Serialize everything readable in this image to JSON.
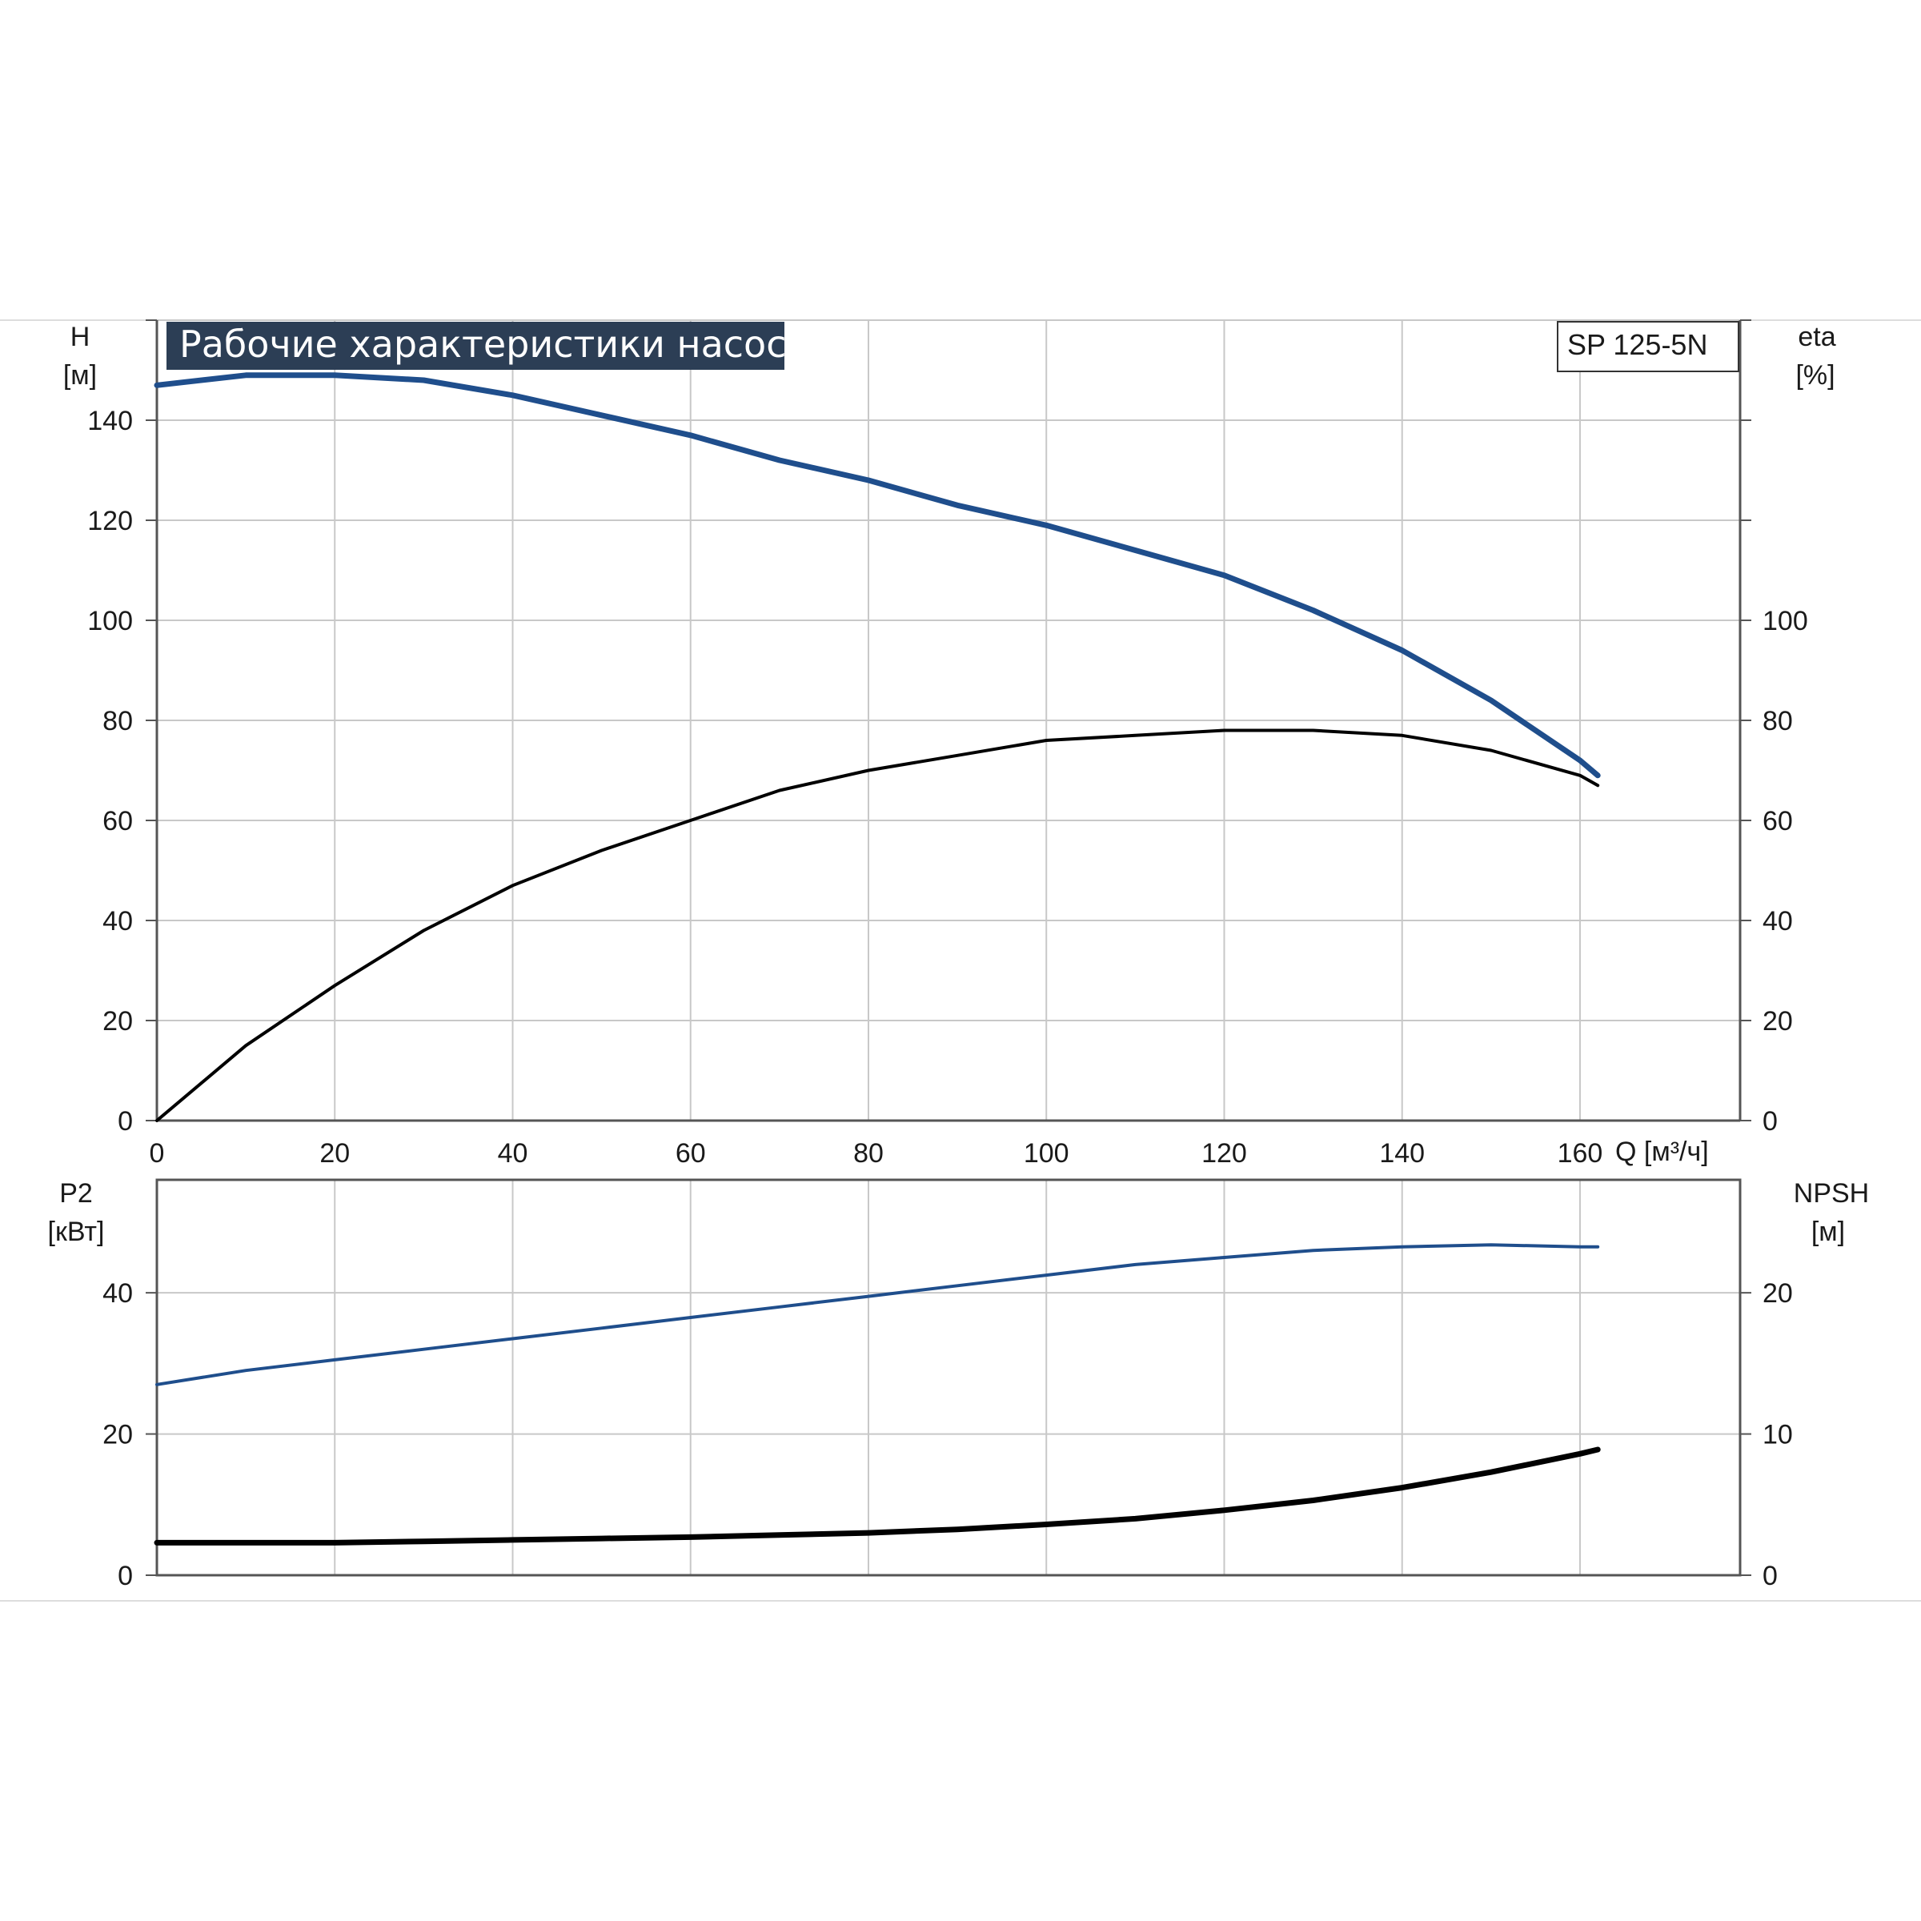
{
  "chart_data": [
    {
      "type": "line",
      "title": "Рабочие характеристики насоса",
      "model_label": "SP 125-5N",
      "ylabel_left": "H",
      "ylabel_left_unit": "[м]",
      "ylabel_right": "eta",
      "ylabel_right_unit": "[%]",
      "xlabel": "Q [м³/ч]",
      "xlim": [
        0,
        178
      ],
      "ylim_left": [
        0,
        160
      ],
      "ylim_right": [
        0,
        160
      ],
      "x_ticks": [
        "0",
        "20",
        "40",
        "60",
        "80",
        "100",
        "120",
        "140",
        "160"
      ],
      "y_ticks_left": [
        "0",
        "20",
        "40",
        "60",
        "80",
        "100",
        "120",
        "140"
      ],
      "y_ticks_right": [
        "0",
        "20",
        "40",
        "60",
        "80",
        "100"
      ],
      "grid": true,
      "series": [
        {
          "axis": "left",
          "color": "#1f4e8c",
          "x": [
            0,
            10,
            20,
            30,
            40,
            50,
            60,
            70,
            80,
            90,
            100,
            110,
            120,
            130,
            140,
            150,
            160,
            162
          ],
          "y": [
            147,
            149,
            149,
            148,
            145,
            141,
            137,
            132,
            128,
            123,
            119,
            114,
            109,
            102,
            94,
            84,
            72,
            69
          ]
        },
        {
          "axis": "right",
          "color": "#000000",
          "x": [
            0,
            10,
            20,
            30,
            40,
            50,
            60,
            70,
            80,
            90,
            100,
            110,
            120,
            130,
            140,
            150,
            160,
            162
          ],
          "y": [
            0,
            15,
            27,
            38,
            47,
            54,
            60,
            66,
            70,
            73,
            76,
            77,
            78,
            78,
            77,
            74,
            69,
            67
          ]
        }
      ]
    },
    {
      "type": "line",
      "ylabel_left": "P2",
      "ylabel_left_unit": "[кВт]",
      "ylabel_right": "NPSH",
      "ylabel_right_unit": "[м]",
      "xlim": [
        0,
        178
      ],
      "ylim_left": [
        0,
        56
      ],
      "ylim_right": [
        0,
        28
      ],
      "y_ticks_left": [
        "0",
        "20",
        "40"
      ],
      "y_ticks_right": [
        "0",
        "10",
        "20"
      ],
      "grid": true,
      "series": [
        {
          "axis": "left",
          "color": "#1f4e8c",
          "x": [
            0,
            10,
            20,
            30,
            40,
            50,
            60,
            70,
            80,
            90,
            100,
            110,
            120,
            130,
            140,
            150,
            160,
            162
          ],
          "y": [
            27,
            29,
            30.5,
            32,
            33.5,
            35,
            36.5,
            38,
            39.5,
            41,
            42.5,
            44,
            45,
            46,
            46.5,
            46.8,
            46.5,
            46.5
          ]
        },
        {
          "axis": "right",
          "color": "#000000",
          "x": [
            0,
            10,
            20,
            30,
            40,
            50,
            60,
            70,
            80,
            90,
            100,
            110,
            120,
            130,
            140,
            150,
            160,
            162
          ],
          "y": [
            2.3,
            2.3,
            2.3,
            2.4,
            2.5,
            2.6,
            2.7,
            2.85,
            3.0,
            3.25,
            3.6,
            4.0,
            4.6,
            5.3,
            6.2,
            7.3,
            8.6,
            8.9
          ]
        }
      ]
    }
  ]
}
